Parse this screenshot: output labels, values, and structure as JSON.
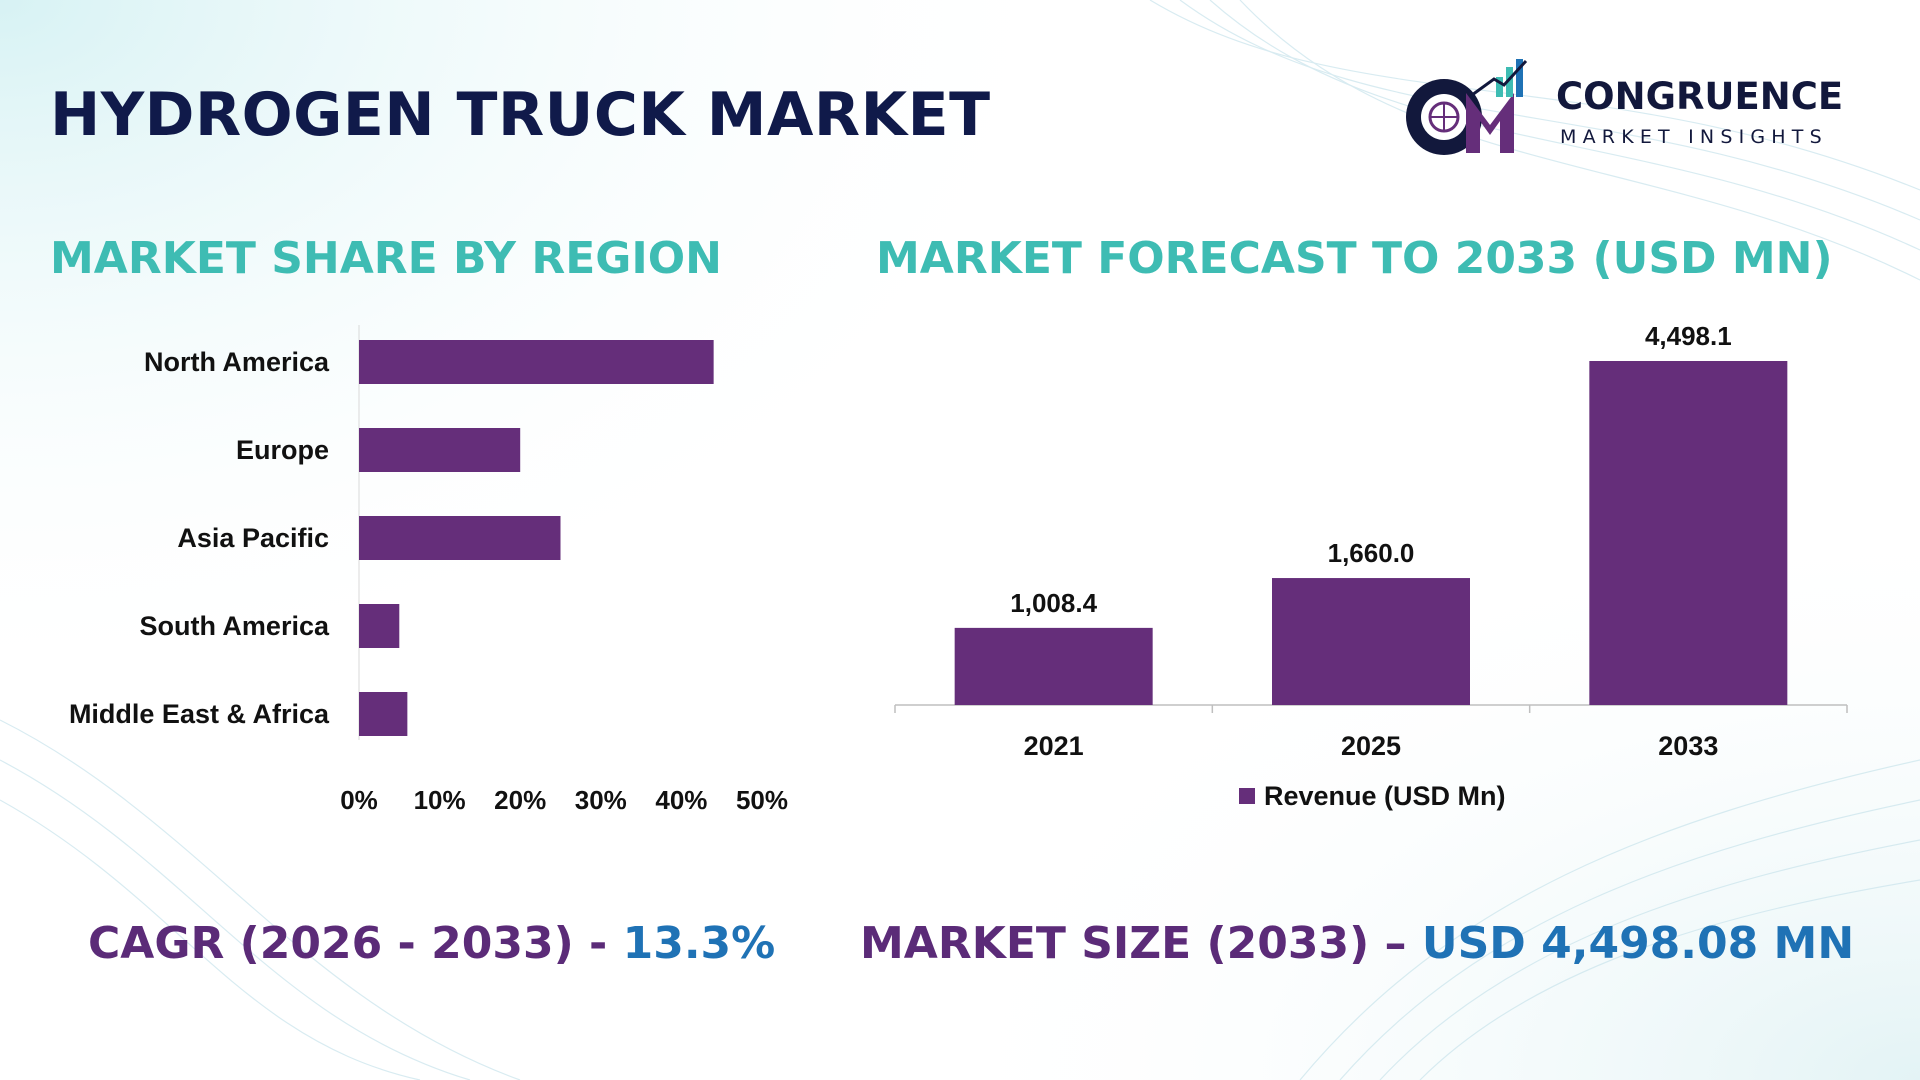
{
  "page": {
    "title": "HYDROGEN TRUCK MARKET"
  },
  "brand": {
    "name": "CONGRUENCE",
    "tagline": "MARKET INSIGHTS",
    "colors": {
      "navy": "#12183c",
      "purple": "#5b2b78",
      "teal": "#3ebcb3",
      "blue": "#1f72b5"
    }
  },
  "sections": {
    "region_title": "MARKET SHARE BY REGION",
    "forecast_title": "MARKET FORECAST TO 2033 (USD MN)"
  },
  "kpis": {
    "cagr_label": "CAGR (2026 - 2033) - ",
    "cagr_value": "13.3%",
    "size_label": "MARKET SIZE (2033) – ",
    "size_value": "USD 4,498.08 MN"
  },
  "chart_data": [
    {
      "type": "bar",
      "orientation": "horizontal",
      "categories": [
        "North America",
        "Europe",
        "Asia Pacific",
        "South America",
        "Middle East & Africa"
      ],
      "values": [
        44,
        20,
        25,
        5,
        6
      ],
      "xlim": [
        0,
        50
      ],
      "ticks": [
        0,
        10,
        20,
        30,
        40,
        50
      ],
      "tick_labels": [
        "0%",
        "10%",
        "20%",
        "30%",
        "40%",
        "50%"
      ],
      "bar_color": "#652e7a",
      "grid": false
    },
    {
      "type": "bar",
      "orientation": "vertical",
      "categories": [
        "2021",
        "2025",
        "2033"
      ],
      "series": [
        {
          "name": "Revenue (USD Mn)",
          "values": [
            1008.4,
            1660.0,
            4498.1
          ],
          "labels": [
            "1,008.4",
            "1,660.0",
            "4,498.1"
          ]
        }
      ],
      "ylim": [
        0,
        4498.1
      ],
      "legend": "bottom",
      "bar_color": "#652e7a",
      "grid": false
    }
  ]
}
